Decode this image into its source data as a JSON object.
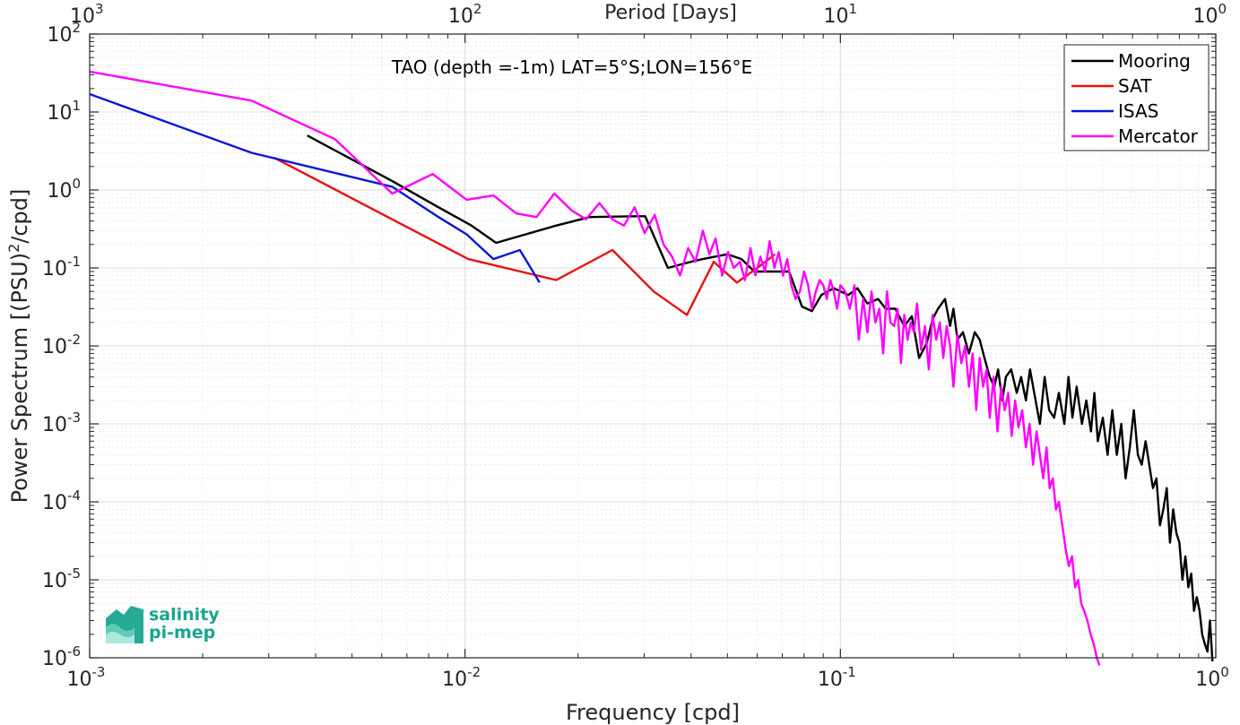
{
  "chart_data": {
    "type": "line",
    "title": "TAO (depth =-1m) LAT=5°S;LON=156°E",
    "xlabel": "Frequency [cpd]",
    "ylabel": "Power Spectrum [(PSU)",
    "ylabel_sup": "2",
    "ylabel_tail": "/cpd]",
    "top_xlabel": "Period [Days]",
    "x_scale": "log",
    "y_scale": "log",
    "xlim": [
      0.001,
      1
    ],
    "ylim": [
      1e-06,
      100
    ],
    "grid": true,
    "legend_position": "top-right",
    "x_ticks": [
      {
        "base": "10",
        "exp": "-3",
        "value": 0.001
      },
      {
        "base": "10",
        "exp": "-2",
        "value": 0.01
      },
      {
        "base": "10",
        "exp": "-1",
        "value": 0.1
      },
      {
        "base": "10",
        "exp": "0",
        "value": 1
      }
    ],
    "y_ticks": [
      {
        "base": "10",
        "exp": "2",
        "value": 100
      },
      {
        "base": "10",
        "exp": "1",
        "value": 10
      },
      {
        "base": "10",
        "exp": "",
        "value": 1,
        "plain": "10",
        "plain_tail": "0",
        "label": "10",
        "decimal": "1.0"
      },
      {
        "base": "10",
        "exp": "-1",
        "value": 0.1
      },
      {
        "base": "10",
        "exp": "-2",
        "value": 0.01
      },
      {
        "base": "10",
        "exp": "-3",
        "value": 0.001
      },
      {
        "base": "10",
        "exp": "-4",
        "value": 0.0001
      },
      {
        "base": "10",
        "exp": "-5",
        "value": 1e-05
      },
      {
        "base": "10",
        "exp": "-6",
        "value": 1e-06
      }
    ],
    "top_ticks": [
      {
        "base": "10",
        "exp": "3",
        "value": 0.001
      },
      {
        "base": "10",
        "exp": "2",
        "value": 0.01
      },
      {
        "base": "10",
        "exp": "1",
        "value": 0.1
      },
      {
        "base": "10",
        "exp": "0",
        "value": 1
      }
    ],
    "series": [
      {
        "name": "Mooring",
        "color": "#000000",
        "x": [
          0.0038,
          0.0064,
          0.0085,
          0.0104,
          0.0121,
          0.0175,
          0.0215,
          0.0285,
          0.0302,
          0.0347,
          0.04,
          0.043,
          0.05,
          0.0545,
          0.059,
          0.064,
          0.068,
          0.073,
          0.079,
          0.084,
          0.089,
          0.096,
          0.105,
          0.111,
          0.118,
          0.126,
          0.132,
          0.14,
          0.148,
          0.155,
          0.162,
          0.17,
          0.176,
          0.182,
          0.19,
          0.196,
          0.2,
          0.205,
          0.212,
          0.22,
          0.228,
          0.235,
          0.242,
          0.25,
          0.257,
          0.263,
          0.27,
          0.276,
          0.285,
          0.295,
          0.303,
          0.312,
          0.32,
          0.331,
          0.34,
          0.35,
          0.36,
          0.371,
          0.382,
          0.395,
          0.405,
          0.415,
          0.426,
          0.44,
          0.452,
          0.465,
          0.475,
          0.485,
          0.5,
          0.515,
          0.53,
          0.545,
          0.56,
          0.575,
          0.59,
          0.605,
          0.62,
          0.635,
          0.65,
          0.665,
          0.68,
          0.695,
          0.71,
          0.725,
          0.74,
          0.755,
          0.77,
          0.785,
          0.8,
          0.815,
          0.83,
          0.845,
          0.86,
          0.875,
          0.89,
          0.905,
          0.92,
          0.935,
          0.95,
          0.965,
          0.98
        ],
        "values": [
          5.0,
          1.3,
          0.6,
          0.35,
          0.21,
          0.35,
          0.45,
          0.46,
          0.46,
          0.1,
          0.12,
          0.13,
          0.15,
          0.13,
          0.09,
          0.09,
          0.09,
          0.09,
          0.032,
          0.028,
          0.045,
          0.055,
          0.045,
          0.055,
          0.035,
          0.04,
          0.03,
          0.03,
          0.018,
          0.024,
          0.007,
          0.011,
          0.022,
          0.03,
          0.04,
          0.018,
          0.03,
          0.012,
          0.015,
          0.008,
          0.015,
          0.012,
          0.007,
          0.004,
          0.003,
          0.005,
          0.002,
          0.004,
          0.005,
          0.0025,
          0.004,
          0.002,
          0.005,
          0.002,
          0.001,
          0.004,
          0.0015,
          0.0012,
          0.0025,
          0.001,
          0.004,
          0.0012,
          0.003,
          0.001,
          0.002,
          0.0008,
          0.0025,
          0.0006,
          0.0012,
          0.0004,
          0.0015,
          0.0004,
          0.001,
          0.0002,
          0.0005,
          0.0015,
          0.0004,
          0.0003,
          0.0006,
          0.0003,
          0.00015,
          0.0002,
          5e-05,
          8e-05,
          0.00015,
          3e-05,
          8e-05,
          4e-05,
          3e-05,
          1e-05,
          2e-05,
          8e-06,
          1.2e-05,
          4e-06,
          6e-06,
          4e-06,
          2e-06,
          1.5e-06,
          1.2e-06,
          3e-06,
          9e-07
        ]
      },
      {
        "name": "SAT",
        "color": "#e8110f",
        "x": [
          0.0031,
          0.0102,
          0.0175,
          0.0247,
          0.0318,
          0.039,
          0.046,
          0.053,
          0.06,
          0.067
        ],
        "values": [
          2.6,
          0.13,
          0.07,
          0.17,
          0.05,
          0.025,
          0.12,
          0.065,
          0.1,
          0.15
        ]
      },
      {
        "name": "ISAS",
        "color": "#0a14e0",
        "x": [
          0.001,
          0.0027,
          0.0064,
          0.0085,
          0.0101,
          0.0119,
          0.014,
          0.0158
        ],
        "values": [
          17,
          3.0,
          1.1,
          0.45,
          0.27,
          0.13,
          0.17,
          0.065
        ]
      },
      {
        "name": "Mercator",
        "color": "#ff00ff",
        "x": [
          0.001,
          0.0027,
          0.0045,
          0.0064,
          0.0082,
          0.0101,
          0.0119,
          0.0137,
          0.0155,
          0.0173,
          0.0192,
          0.021,
          0.0228,
          0.0247,
          0.0265,
          0.0283,
          0.0301,
          0.032,
          0.0338,
          0.0356,
          0.0374,
          0.0393,
          0.0411,
          0.043,
          0.0448,
          0.0465,
          0.0484,
          0.0502,
          0.052,
          0.054,
          0.0557,
          0.0576,
          0.0594,
          0.0612,
          0.063,
          0.0648,
          0.0667,
          0.0685,
          0.0703,
          0.0722,
          0.074,
          0.076,
          0.078,
          0.08,
          0.082,
          0.084,
          0.086,
          0.088,
          0.09,
          0.092,
          0.094,
          0.096,
          0.098,
          0.1,
          0.103,
          0.106,
          0.109,
          0.112,
          0.115,
          0.118,
          0.121,
          0.124,
          0.127,
          0.13,
          0.133,
          0.136,
          0.139,
          0.142,
          0.145,
          0.148,
          0.151,
          0.154,
          0.157,
          0.16,
          0.164,
          0.168,
          0.172,
          0.176,
          0.18,
          0.184,
          0.188,
          0.192,
          0.196,
          0.2,
          0.205,
          0.21,
          0.215,
          0.22,
          0.225,
          0.23,
          0.235,
          0.24,
          0.245,
          0.25,
          0.256,
          0.262,
          0.268,
          0.274,
          0.28,
          0.286,
          0.292,
          0.298,
          0.305,
          0.312,
          0.319,
          0.326,
          0.333,
          0.34,
          0.347,
          0.354,
          0.361,
          0.368,
          0.375,
          0.382,
          0.39,
          0.398,
          0.406,
          0.414,
          0.422,
          0.43,
          0.438,
          0.446,
          0.455,
          0.464,
          0.473,
          0.482,
          0.49
        ],
        "values": [
          33,
          14,
          4.5,
          0.9,
          1.6,
          0.75,
          0.85,
          0.5,
          0.45,
          0.9,
          0.55,
          0.42,
          0.68,
          0.42,
          0.35,
          0.6,
          0.28,
          0.48,
          0.2,
          0.14,
          0.08,
          0.18,
          0.12,
          0.3,
          0.15,
          0.24,
          0.08,
          0.16,
          0.1,
          0.12,
          0.07,
          0.18,
          0.08,
          0.14,
          0.09,
          0.22,
          0.1,
          0.16,
          0.08,
          0.13,
          0.06,
          0.04,
          0.05,
          0.09,
          0.06,
          0.03,
          0.05,
          0.07,
          0.06,
          0.04,
          0.07,
          0.05,
          0.03,
          0.06,
          0.05,
          0.03,
          0.06,
          0.012,
          0.04,
          0.015,
          0.05,
          0.02,
          0.03,
          0.008,
          0.05,
          0.02,
          0.018,
          0.03,
          0.006,
          0.025,
          0.012,
          0.02,
          0.015,
          0.035,
          0.009,
          0.018,
          0.005,
          0.025,
          0.012,
          0.02,
          0.007,
          0.018,
          0.01,
          0.003,
          0.014,
          0.006,
          0.01,
          0.003,
          0.008,
          0.0015,
          0.007,
          0.003,
          0.005,
          0.0012,
          0.004,
          0.0008,
          0.003,
          0.0015,
          0.0025,
          0.0007,
          0.002,
          0.0009,
          0.0015,
          0.0005,
          0.001,
          0.0003,
          0.0008,
          0.0004,
          0.0002,
          0.0005,
          0.00015,
          0.0002,
          8e-05,
          0.0001,
          5e-05,
          2.5e-05,
          1.5e-05,
          2e-05,
          8e-06,
          1e-05,
          5e-06,
          4e-06,
          3e-06,
          2e-06,
          1.5e-06,
          1e-06,
          8e-07
        ]
      }
    ]
  },
  "logo": {
    "line1": "salinity",
    "line2": "pi-mep",
    "color": "#1aa58f"
  }
}
